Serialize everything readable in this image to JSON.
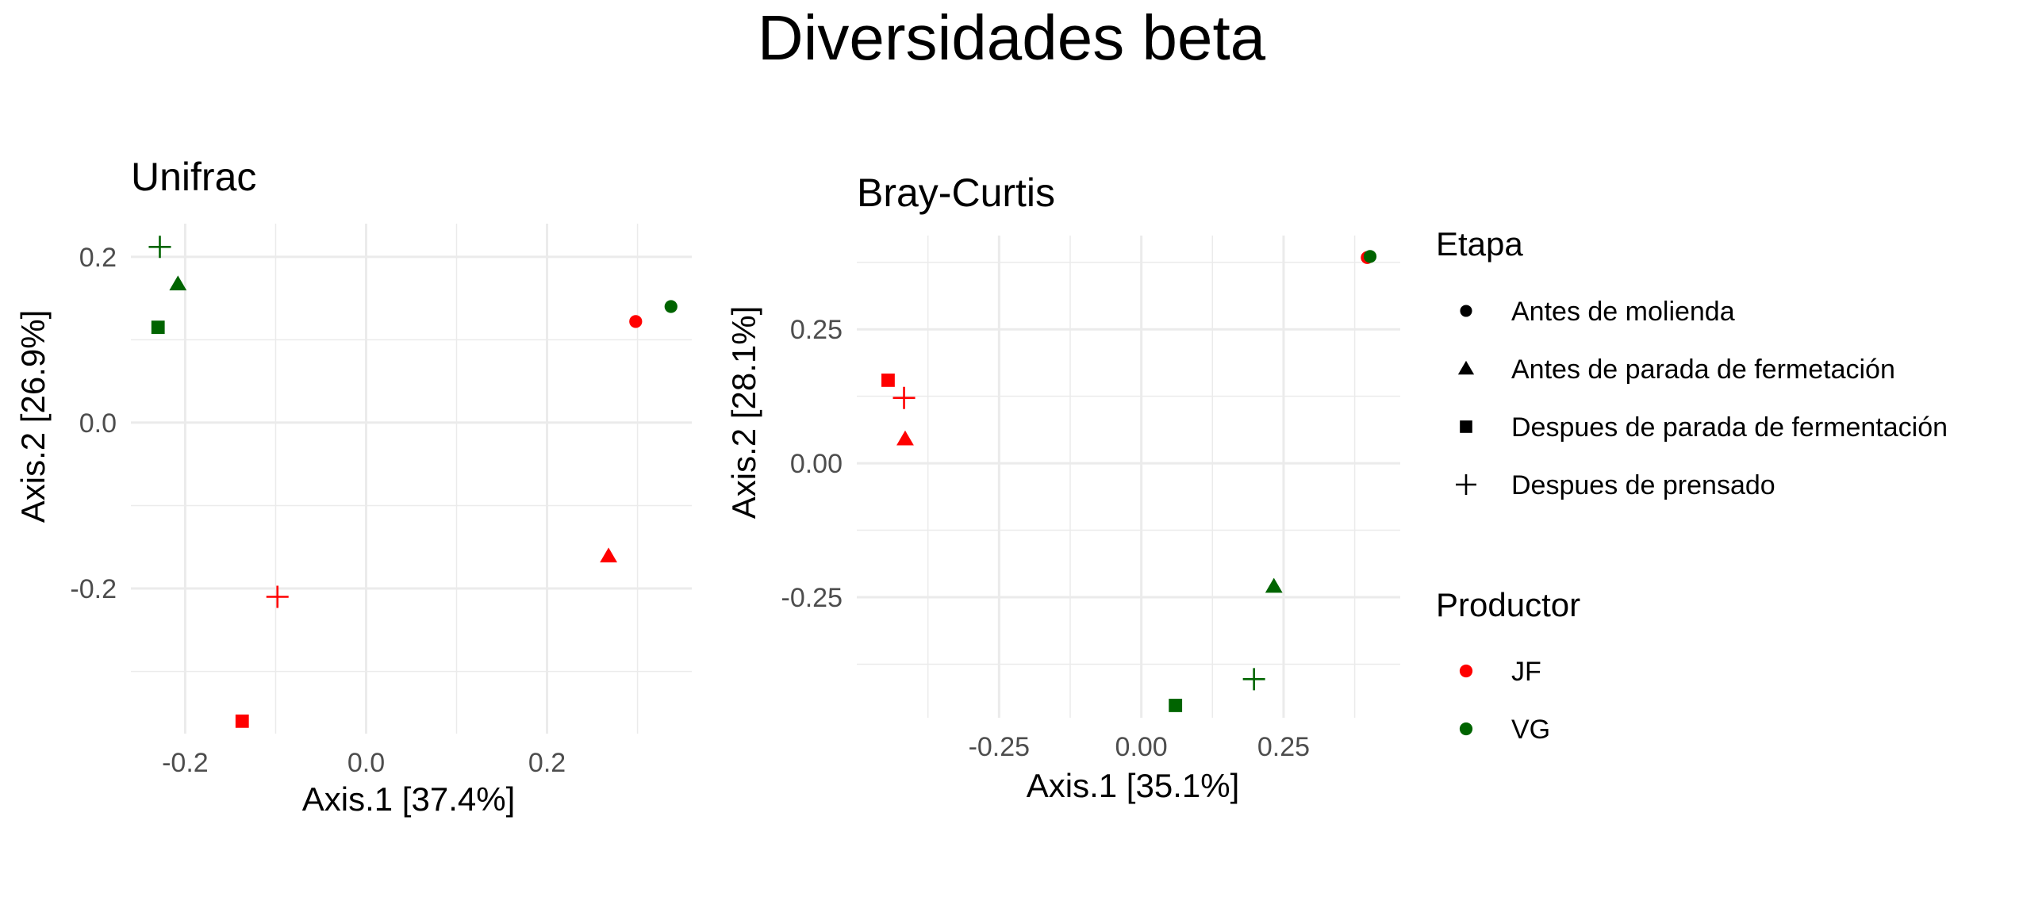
{
  "title": "Diversidades beta",
  "chart_data": [
    {
      "type": "scatter",
      "title": "Unifrac",
      "xlabel": "Axis.1   [37.4%]",
      "ylabel": "Axis.2   [26.9%]",
      "xlim": [
        -0.26,
        0.36
      ],
      "ylim": [
        -0.375,
        0.24
      ],
      "xticks": [
        -0.2,
        0.0,
        0.2
      ],
      "xtick_labels": [
        "-0.2",
        "0.0",
        "0.2"
      ],
      "yticks": [
        0.2,
        0.0,
        -0.2
      ],
      "ytick_labels": [
        "0.2",
        "0.0",
        "-0.2"
      ],
      "xminor": [
        -0.1,
        0.1,
        0.3
      ],
      "yminor": [
        0.1,
        -0.1,
        -0.3
      ],
      "grid": true,
      "points": [
        {
          "x": 0.298,
          "y": 0.122,
          "etapa": "Antes de molienda",
          "productor": "JF"
        },
        {
          "x": 0.268,
          "y": -0.161,
          "etapa": "Antes de parada de fermetación",
          "productor": "JF"
        },
        {
          "x": -0.137,
          "y": -0.36,
          "etapa": "Despues de parada de fermentación",
          "productor": "JF"
        },
        {
          "x": -0.098,
          "y": -0.21,
          "etapa": "Despues de prensado",
          "productor": "JF"
        },
        {
          "x": 0.337,
          "y": 0.14,
          "etapa": "Antes de molienda",
          "productor": "VG"
        },
        {
          "x": -0.208,
          "y": 0.167,
          "etapa": "Antes de parada de fermetación",
          "productor": "VG"
        },
        {
          "x": -0.23,
          "y": 0.115,
          "etapa": "Despues de parada de fermentación",
          "productor": "VG"
        },
        {
          "x": -0.228,
          "y": 0.212,
          "etapa": "Despues de prensado",
          "productor": "VG"
        }
      ]
    },
    {
      "type": "scatter",
      "title": "Bray-Curtis",
      "xlabel": "Axis.1   [35.1%]",
      "ylabel": "Axis.2   [28.1%]",
      "xlim": [
        -0.5,
        0.455
      ],
      "ylim": [
        -0.475,
        0.425
      ],
      "xticks": [
        -0.25,
        0.0,
        0.25
      ],
      "xtick_labels": [
        "-0.25",
        "0.00",
        "0.25"
      ],
      "yticks": [
        0.25,
        0.0,
        -0.25
      ],
      "ytick_labels": [
        "0.25",
        "0.00",
        "-0.25"
      ],
      "xminor": [
        -0.375,
        -0.125,
        0.125,
        0.375
      ],
      "yminor": [
        0.375,
        0.125,
        -0.125,
        -0.375
      ],
      "grid": true,
      "points": [
        {
          "x": 0.397,
          "y": 0.384,
          "etapa": "Antes de molienda",
          "productor": "JF"
        },
        {
          "x": -0.415,
          "y": 0.045,
          "etapa": "Antes de parada de fermetación",
          "productor": "JF"
        },
        {
          "x": -0.445,
          "y": 0.155,
          "etapa": "Despues de parada de fermentación",
          "productor": "JF"
        },
        {
          "x": -0.417,
          "y": 0.122,
          "etapa": "Despues de prensado",
          "productor": "JF"
        },
        {
          "x": 0.402,
          "y": 0.386,
          "etapa": "Antes de molienda",
          "productor": "VG"
        },
        {
          "x": 0.233,
          "y": -0.23,
          "etapa": "Antes de parada de fermetación",
          "productor": "VG"
        },
        {
          "x": 0.06,
          "y": -0.452,
          "etapa": "Despues de parada de fermentación",
          "productor": "VG"
        },
        {
          "x": 0.198,
          "y": -0.403,
          "etapa": "Despues de prensado",
          "productor": "VG"
        }
      ]
    }
  ],
  "legend": {
    "etapa_title": "Etapa",
    "etapa": [
      {
        "label": "Antes de molienda",
        "shape": "circle"
      },
      {
        "label": "Antes de parada de fermetación",
        "shape": "triangle"
      },
      {
        "label": "Despues de parada de fermentación",
        "shape": "square"
      },
      {
        "label": "Despues de prensado",
        "shape": "plus"
      }
    ],
    "productor_title": "Productor",
    "productor": [
      {
        "label": "JF",
        "color": "#ff0000"
      },
      {
        "label": "VG",
        "color": "#006400"
      }
    ]
  }
}
